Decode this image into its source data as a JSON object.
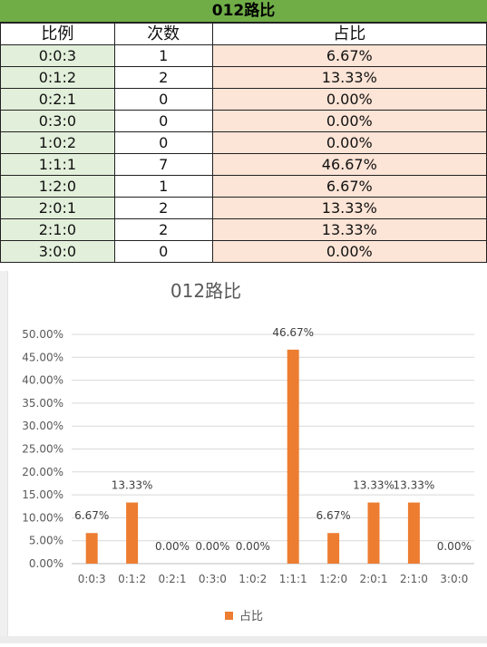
{
  "sheet": {
    "title": "012路比",
    "headers": [
      "比例",
      "次数",
      "占比"
    ],
    "rows": [
      {
        "ratio": "0:0:3",
        "count": "1",
        "percent": "6.67%"
      },
      {
        "ratio": "0:1:2",
        "count": "2",
        "percent": "13.33%"
      },
      {
        "ratio": "0:2:1",
        "count": "0",
        "percent": "0.00%"
      },
      {
        "ratio": "0:3:0",
        "count": "0",
        "percent": "0.00%"
      },
      {
        "ratio": "1:0:2",
        "count": "0",
        "percent": "0.00%"
      },
      {
        "ratio": "1:1:1",
        "count": "7",
        "percent": "46.67%"
      },
      {
        "ratio": "1:2:0",
        "count": "1",
        "percent": "6.67%"
      },
      {
        "ratio": "2:0:1",
        "count": "2",
        "percent": "13.33%"
      },
      {
        "ratio": "2:1:0",
        "count": "2",
        "percent": "13.33%"
      },
      {
        "ratio": "3:0:0",
        "count": "0",
        "percent": "0.00%"
      }
    ],
    "colors": {
      "title_bg": "#70ad47",
      "ratio_col_bg": "#e2efda",
      "percent_col_bg": "#fce4d6"
    }
  },
  "chart_data": {
    "type": "bar",
    "title": "012路比",
    "categories": [
      "0:0:3",
      "0:1:2",
      "0:2:1",
      "0:3:0",
      "1:0:2",
      "1:1:1",
      "1:2:0",
      "2:0:1",
      "2:1:0",
      "3:0:0"
    ],
    "series": [
      {
        "name": "占比",
        "color": "#ed7d31",
        "values": [
          6.67,
          13.33,
          0.0,
          0.0,
          0.0,
          46.67,
          6.67,
          13.33,
          13.33,
          0.0
        ],
        "data_labels": [
          "6.67%",
          "13.33%",
          "0.00%",
          "0.00%",
          "0.00%",
          "46.67%",
          "6.67%",
          "13.33%",
          "13.33%",
          "0.00%"
        ]
      }
    ],
    "ylim": [
      0,
      50
    ],
    "yticks": [
      "0.00%",
      "5.00%",
      "10.00%",
      "15.00%",
      "20.00%",
      "25.00%",
      "30.00%",
      "35.00%",
      "40.00%",
      "45.00%",
      "50.00%"
    ],
    "xlabel": "",
    "ylabel": "",
    "grid": true,
    "legend": "bottom"
  }
}
